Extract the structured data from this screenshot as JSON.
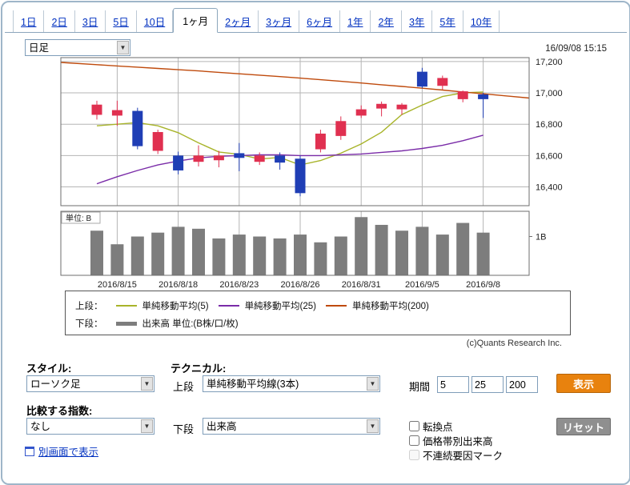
{
  "header": {
    "tabs": [
      {
        "label": "1日",
        "active": false
      },
      {
        "label": "2日",
        "active": false
      },
      {
        "label": "3日",
        "active": false
      },
      {
        "label": "5日",
        "active": false
      },
      {
        "label": "10日",
        "active": false
      },
      {
        "label": "1ヶ月",
        "active": true
      },
      {
        "label": "2ヶ月",
        "active": false
      },
      {
        "label": "3ヶ月",
        "active": false
      },
      {
        "label": "6ヶ月",
        "active": false
      },
      {
        "label": "1年",
        "active": false
      },
      {
        "label": "2年",
        "active": false
      },
      {
        "label": "3年",
        "active": false
      },
      {
        "label": "5年",
        "active": false
      },
      {
        "label": "10年",
        "active": false
      }
    ],
    "timeframe_select": {
      "value": "日足"
    },
    "timestamp": "16/09/08 15:15"
  },
  "chart_data": {
    "type": "candlestick",
    "y_axis": {
      "max": 17225,
      "min": 16280,
      "ticks": [
        17200,
        17000,
        16800,
        16600,
        16400
      ],
      "labels": [
        "17,200",
        "17,000",
        "16,800",
        "16,600",
        "16,400"
      ]
    },
    "x_ticks": [
      {
        "index": 1,
        "label": "2016/8/15"
      },
      {
        "index": 4,
        "label": "2016/8/18"
      },
      {
        "index": 7,
        "label": "2016/8/23"
      },
      {
        "index": 10,
        "label": "2016/8/26"
      },
      {
        "index": 13,
        "label": "2016/8/31"
      },
      {
        "index": 16,
        "label": "2016/9/5"
      },
      {
        "index": 19,
        "label": "2016/9/8"
      }
    ],
    "candles": [
      {
        "date": "2016/8/12",
        "open": 16860,
        "high": 16950,
        "low": 16830,
        "close": 16925
      },
      {
        "date": "2016/8/15",
        "open": 16855,
        "high": 16950,
        "low": 16790,
        "close": 16890
      },
      {
        "date": "2016/8/16",
        "open": 16885,
        "high": 16905,
        "low": 16640,
        "close": 16660
      },
      {
        "date": "2016/8/17",
        "open": 16630,
        "high": 16765,
        "low": 16610,
        "close": 16750
      },
      {
        "date": "2016/8/18",
        "open": 16600,
        "high": 16625,
        "low": 16480,
        "close": 16505
      },
      {
        "date": "2016/8/19",
        "open": 16560,
        "high": 16665,
        "low": 16530,
        "close": 16600
      },
      {
        "date": "2016/8/22",
        "open": 16570,
        "high": 16630,
        "low": 16525,
        "close": 16600
      },
      {
        "date": "2016/8/23",
        "open": 16615,
        "high": 16680,
        "low": 16500,
        "close": 16585
      },
      {
        "date": "2016/8/24",
        "open": 16560,
        "high": 16620,
        "low": 16540,
        "close": 16600
      },
      {
        "date": "2016/8/25",
        "open": 16600,
        "high": 16620,
        "low": 16510,
        "close": 16555
      },
      {
        "date": "2016/8/26",
        "open": 16580,
        "high": 16600,
        "low": 16340,
        "close": 16360
      },
      {
        "date": "2016/8/29",
        "open": 16640,
        "high": 16765,
        "low": 16620,
        "close": 16740
      },
      {
        "date": "2016/8/30",
        "open": 16725,
        "high": 16850,
        "low": 16700,
        "close": 16820
      },
      {
        "date": "2016/8/31",
        "open": 16855,
        "high": 16920,
        "low": 16840,
        "close": 16895
      },
      {
        "date": "2016/9/1",
        "open": 16900,
        "high": 16945,
        "low": 16850,
        "close": 16930
      },
      {
        "date": "2016/9/2",
        "open": 16895,
        "high": 16935,
        "low": 16860,
        "close": 16925
      },
      {
        "date": "2016/9/5",
        "open": 17135,
        "high": 17160,
        "low": 17030,
        "close": 17040
      },
      {
        "date": "2016/9/6",
        "open": 17045,
        "high": 17110,
        "low": 17020,
        "close": 17095
      },
      {
        "date": "2016/9/7",
        "open": 16960,
        "high": 17015,
        "low": 16940,
        "close": 17010
      },
      {
        "date": "2016/9/8",
        "open": 16990,
        "high": 17000,
        "low": 16840,
        "close": 16960
      }
    ],
    "series": [
      {
        "name": "単純移動平均(5)",
        "color": "#a8b42a",
        "values": [
          16790,
          16800,
          16810,
          16790,
          16746,
          16681,
          16623,
          16608,
          16578,
          16588,
          16540,
          16568,
          16615,
          16674,
          16749,
          16862,
          16922,
          16977,
          17000,
          17006
        ]
      },
      {
        "name": "単純移動平均(25)",
        "color": "#7a2ca8",
        "values": [
          16420,
          16465,
          16505,
          16540,
          16565,
          16585,
          16595,
          16600,
          16605,
          16605,
          16600,
          16600,
          16605,
          16610,
          16620,
          16630,
          16645,
          16665,
          16695,
          16730
        ]
      },
      {
        "name": "単純移動平均(200)",
        "color": "#bf4a0c",
        "values": [
          17180,
          17172,
          17164,
          17156,
          17148,
          17140,
          17131,
          17122,
          17113,
          17104,
          17094,
          17084,
          17074,
          17063,
          17052,
          17041,
          17030,
          17018,
          17006,
          16994
        ]
      }
    ],
    "volume": {
      "unit_label": "単位: B",
      "axis_label": "1B",
      "max": 1.65,
      "color": "#7d7d7d",
      "values": [
        1.15,
        0.8,
        1.0,
        1.1,
        1.25,
        1.2,
        0.95,
        1.05,
        1.0,
        0.95,
        1.05,
        0.85,
        1.0,
        1.5,
        1.3,
        1.15,
        1.25,
        1.05,
        1.35,
        1.1
      ]
    },
    "colors": {
      "up": "#e03050",
      "down": "#1f3eb5"
    }
  },
  "legend": {
    "upper_label": "上段：",
    "upper_items": [
      {
        "label": "単純移動平均(5)",
        "color": "#a8b42a"
      },
      {
        "label": "単純移動平均(25)",
        "color": "#7a2ca8"
      },
      {
        "label": "単純移動平均(200)",
        "color": "#bf4a0c"
      }
    ],
    "lower_label": "下段：",
    "lower_items": [
      {
        "label": "出来高 単位:(B株/口/枚)",
        "color": "#7d7d7d"
      }
    ]
  },
  "credit": "(c)Quants Research Inc.",
  "controls": {
    "style_label": "スタイル:",
    "style_select": "ローソク足",
    "technical_label": "テクニカル:",
    "upper_label": "上段",
    "upper_select": "単純移動平均線(3本)",
    "period_label": "期間",
    "period_inputs": [
      "5",
      "25",
      "200"
    ],
    "show_button": "表示",
    "compare_label": "比較する指数:",
    "compare_select": "なし",
    "lower_label": "下段",
    "lower_select": "出来高",
    "checkboxes": [
      {
        "label": "転換点",
        "disabled": false
      },
      {
        "label": "価格帯別出来高",
        "disabled": false
      },
      {
        "label": "不連続要因マーク",
        "disabled": true
      }
    ],
    "reset_button": "リセット",
    "open_window_link": "別画面で表示"
  }
}
